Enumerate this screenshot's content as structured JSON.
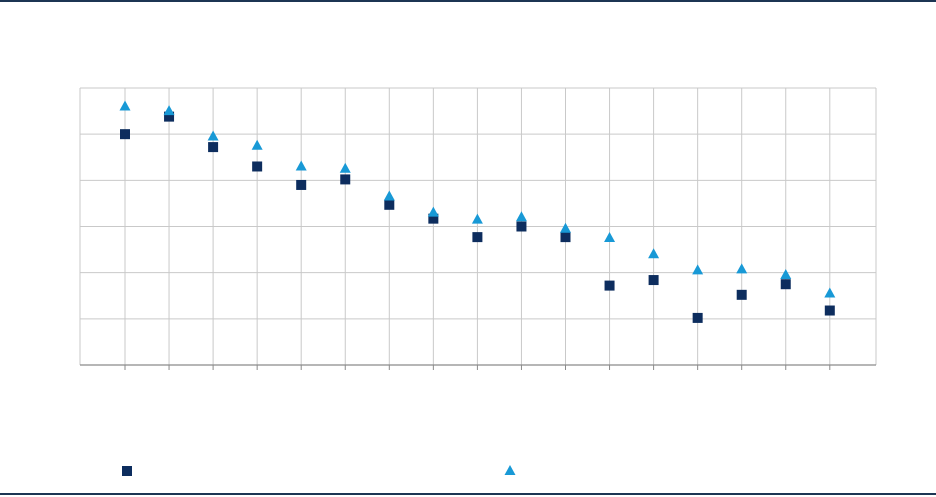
{
  "chart_data": {
    "type": "scatter",
    "title": "",
    "xlabel": "",
    "ylabel": "",
    "ylim": [
      0,
      6
    ],
    "grid": true,
    "legend_position": "bottom",
    "x": [
      1,
      2,
      3,
      4,
      5,
      6,
      7,
      8,
      9,
      10,
      11,
      12,
      13,
      14,
      15,
      16,
      17
    ],
    "series": [
      {
        "name": "",
        "marker": "square",
        "color": "#0d2d5e",
        "values": [
          5.0,
          5.38,
          4.72,
          4.3,
          3.9,
          4.02,
          3.47,
          3.17,
          2.77,
          3.0,
          2.77,
          1.72,
          1.84,
          1.02,
          1.52,
          1.75,
          1.18
        ]
      },
      {
        "name": "",
        "marker": "triangle",
        "color": "#1899d6",
        "values": [
          5.6,
          5.5,
          4.95,
          4.75,
          4.3,
          4.25,
          3.65,
          3.3,
          3.15,
          3.2,
          2.95,
          2.75,
          2.4,
          2.05,
          2.07,
          1.95,
          1.55
        ]
      }
    ]
  }
}
